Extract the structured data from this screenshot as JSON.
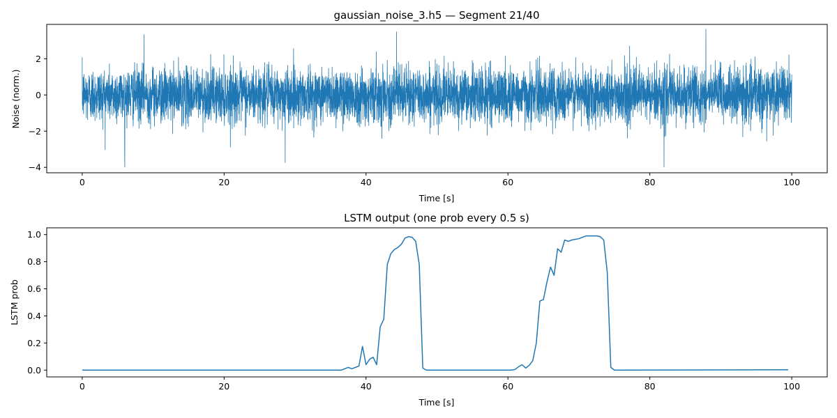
{
  "chart_data": [
    {
      "type": "line",
      "title": "gaussian_noise_3.h5 — Segment 21/40",
      "xlabel": "Time [s]",
      "ylabel": "Noise (norm.)",
      "xlim": [
        -5,
        105
      ],
      "ylim": [
        -4.3,
        3.9
      ],
      "xticks": [
        0,
        20,
        40,
        60,
        80,
        100
      ],
      "yticks": [
        -4,
        -2,
        0,
        2
      ],
      "grid": false,
      "line_color": "#1f77b4",
      "series": [
        {
          "signal": "gaussian noise, sampled continuously over 0–100 s",
          "x_range": [
            0,
            100
          ],
          "mean": 0,
          "std": 0.75,
          "observed_min": -4.0,
          "observed_max": 3.65,
          "extremes": [
            {
              "x": 6.0,
              "y": -4.0
            },
            {
              "x": 82.0,
              "y": -4.0
            },
            {
              "x": 28.6,
              "y": -3.75
            },
            {
              "x": 87.9,
              "y": 3.65
            },
            {
              "x": 44.3,
              "y": 3.5
            },
            {
              "x": 8.7,
              "y": 3.35
            }
          ]
        }
      ]
    },
    {
      "type": "line",
      "title": "LSTM output (one prob every 0.5 s)",
      "xlabel": "Time [s]",
      "ylabel": "LSTM prob",
      "xlim": [
        -5,
        105
      ],
      "ylim": [
        -0.05,
        1.05
      ],
      "xticks": [
        0,
        20,
        40,
        60,
        80,
        100
      ],
      "yticks": [
        0.0,
        0.2,
        0.4,
        0.6,
        0.8,
        1.0
      ],
      "grid": false,
      "line_color": "#1f77b4",
      "series": [
        {
          "x": [
            0,
            36.5,
            37,
            37.5,
            38,
            38.5,
            39,
            39.5,
            40,
            40.5,
            41,
            41.5,
            42,
            42.5,
            43,
            43.5,
            44,
            44.5,
            45,
            45.5,
            46,
            46.5,
            47,
            47.5,
            48,
            48.5,
            60.5,
            61,
            61.5,
            62,
            62.5,
            63,
            63.5,
            64,
            64.5,
            65,
            65.5,
            66,
            66.5,
            67,
            67.5,
            68,
            68.5,
            69,
            69.5,
            70,
            70.5,
            71,
            71.5,
            72,
            72.5,
            73,
            73.5,
            74,
            74.5,
            75,
            99.5
          ],
          "y": [
            0.0,
            0.0,
            0.01,
            0.02,
            0.01,
            0.02,
            0.03,
            0.175,
            0.04,
            0.08,
            0.095,
            0.04,
            0.32,
            0.375,
            0.78,
            0.86,
            0.89,
            0.905,
            0.93,
            0.975,
            0.985,
            0.98,
            0.95,
            0.78,
            0.015,
            0.0,
            0.0,
            0.005,
            0.025,
            0.04,
            0.015,
            0.035,
            0.07,
            0.2,
            0.51,
            0.52,
            0.65,
            0.76,
            0.7,
            0.895,
            0.87,
            0.96,
            0.95,
            0.96,
            0.965,
            0.97,
            0.98,
            0.99,
            0.99,
            0.99,
            0.99,
            0.985,
            0.96,
            0.72,
            0.02,
            0.0,
            0.003
          ]
        }
      ]
    }
  ]
}
